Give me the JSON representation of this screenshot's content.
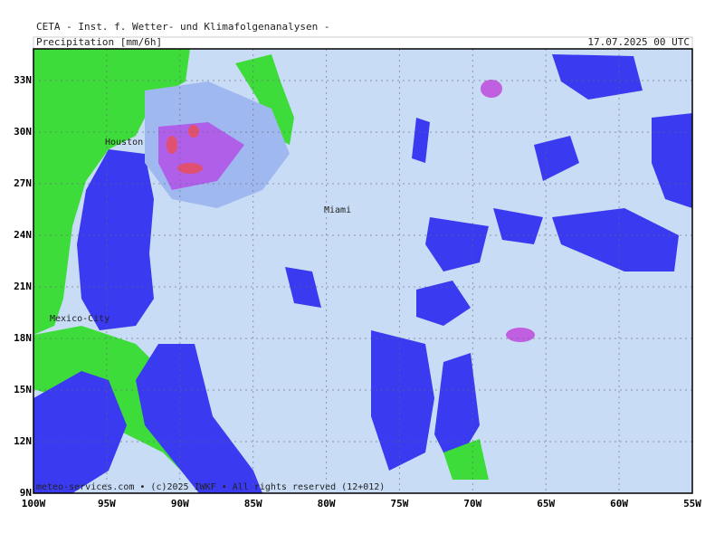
{
  "header": {
    "source": "CETA - Inst. f. Wetter- und Klimafolgenanalysen -",
    "title": "Precipitation [mm/6h]",
    "date": "17.07.2025 00 UTC"
  },
  "map": {
    "xlim": [
      -100,
      -55
    ],
    "ylim": [
      9,
      34.84
    ],
    "xticks": [
      {
        "value": -100,
        "label": "100W"
      },
      {
        "value": -95,
        "label": "95W"
      },
      {
        "value": -90,
        "label": "90W"
      },
      {
        "value": -85,
        "label": "85W"
      },
      {
        "value": -80,
        "label": "80W"
      },
      {
        "value": -75,
        "label": "75W"
      },
      {
        "value": -70,
        "label": "70W"
      },
      {
        "value": -65,
        "label": "65W"
      },
      {
        "value": -60,
        "label": "60W"
      },
      {
        "value": -55,
        "label": "55W"
      }
    ],
    "yticks": [
      {
        "value": 9,
        "label": "9N"
      },
      {
        "value": 12,
        "label": "12N"
      },
      {
        "value": 15,
        "label": "15N"
      },
      {
        "value": 18,
        "label": "18N"
      },
      {
        "value": 21,
        "label": "21N"
      },
      {
        "value": 24,
        "label": "24N"
      },
      {
        "value": 27,
        "label": "27N"
      },
      {
        "value": 30,
        "label": "30N"
      },
      {
        "value": 33,
        "label": "33N"
      }
    ],
    "cities": [
      "Houston",
      "Miami",
      "Mexico-City"
    ]
  },
  "footer": "meteo-services.com • (c)2025 IWKF • All rights reserved (12+012)"
}
